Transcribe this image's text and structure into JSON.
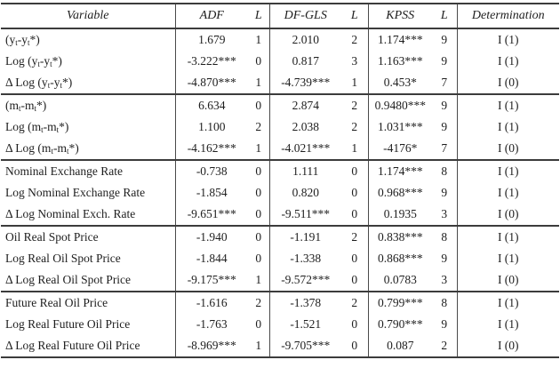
{
  "table": {
    "columns": [
      {
        "label": "Variable"
      },
      {
        "label": "ADF"
      },
      {
        "label": "L"
      },
      {
        "label": "DF-GLS"
      },
      {
        "label": "L"
      },
      {
        "label": "KPSS"
      },
      {
        "label": "L"
      },
      {
        "label": "Determination"
      }
    ],
    "rows": [
      {
        "variable": "(y_t_-y_t_*)",
        "adf": "1.679",
        "adf_l": "1",
        "dfgls": "2.010",
        "dfgls_l": "2",
        "kpss": "1.174***",
        "kpss_l": "9",
        "determination": "I (1)"
      },
      {
        "variable": "Log (y_t_-y_t_*)",
        "adf": "-3.222***",
        "adf_l": "0",
        "dfgls": "0.817",
        "dfgls_l": "3",
        "kpss": "1.163***",
        "kpss_l": "9",
        "determination": "I (1)"
      },
      {
        "variable": "Δ Log (y_t_-y_t_*)",
        "adf": "-4.870***",
        "adf_l": "1",
        "dfgls": "-4.739***",
        "dfgls_l": "1",
        "kpss": "0.453*",
        "kpss_l": "7",
        "determination": "I (0)"
      },
      {
        "variable": "(m_t_-m_t_*)",
        "adf": "6.634",
        "adf_l": "0",
        "dfgls": "2.874",
        "dfgls_l": "2",
        "kpss": "0.9480***",
        "kpss_l": "9",
        "determination": "I (1)"
      },
      {
        "variable": "Log (m_t_-m_t_*)",
        "adf": "1.100",
        "adf_l": "2",
        "dfgls": "2.038",
        "dfgls_l": "2",
        "kpss": "1.031***",
        "kpss_l": "9",
        "determination": "I (1)"
      },
      {
        "variable": "Δ Log (m_t_-m_t_*)",
        "adf": "-4.162***",
        "adf_l": "1",
        "dfgls": "-4.021***",
        "dfgls_l": "1",
        "kpss": "-4176*",
        "kpss_l": "7",
        "determination": "I (0)"
      },
      {
        "variable": "Nominal Exchange Rate",
        "adf": "-0.738",
        "adf_l": "0",
        "dfgls": "1.111",
        "dfgls_l": "0",
        "kpss": "1.174***",
        "kpss_l": "8",
        "determination": "I (1)"
      },
      {
        "variable": "Log Nominal Exchange Rate",
        "adf": "-1.854",
        "adf_l": "0",
        "dfgls": "0.820",
        "dfgls_l": "0",
        "kpss": "0.968***",
        "kpss_l": "9",
        "determination": "I (1)"
      },
      {
        "variable": "Δ Log Nominal Exch. Rate",
        "adf": "-9.651***",
        "adf_l": "0",
        "dfgls": "-9.511***",
        "dfgls_l": "0",
        "kpss": "0.1935",
        "kpss_l": "3",
        "determination": "I (0)"
      },
      {
        "variable": "Oil Real Spot Price",
        "adf": "-1.940",
        "adf_l": "0",
        "dfgls": "-1.191",
        "dfgls_l": "2",
        "kpss": "0.838***",
        "kpss_l": "8",
        "determination": "I (1)"
      },
      {
        "variable": "Log Real Oil Spot Price",
        "adf": "-1.844",
        "adf_l": "0",
        "dfgls": "-1.338",
        "dfgls_l": "0",
        "kpss": "0.868***",
        "kpss_l": "9",
        "determination": "I (1)"
      },
      {
        "variable": "Δ Log Real Oil Spot Price",
        "adf": "-9.175***",
        "adf_l": "1",
        "dfgls": "-9.572***",
        "dfgls_l": "0",
        "kpss": "0.0783",
        "kpss_l": "3",
        "determination": "I (0)"
      },
      {
        "variable": "Future Real Oil Price",
        "adf": "-1.616",
        "adf_l": "2",
        "dfgls": "-1.378",
        "dfgls_l": "2",
        "kpss": "0.799***",
        "kpss_l": "8",
        "determination": "I (1)"
      },
      {
        "variable": "Log Real Future Oil Price",
        "adf": "-1.763",
        "adf_l": "0",
        "dfgls": "-1.521",
        "dfgls_l": "0",
        "kpss": "0.790***",
        "kpss_l": "9",
        "determination": "I (1)"
      },
      {
        "variable": "Δ Log Real Future Oil Price",
        "adf": "-8.969***",
        "adf_l": "1",
        "dfgls": "-9.705***",
        "dfgls_l": "0",
        "kpss": "0.087",
        "kpss_l": "2",
        "determination": "I (0)"
      }
    ]
  },
  "colors": {
    "text": "#1e1e1e",
    "border": "#3c3c3c",
    "background": "#ffffff"
  }
}
